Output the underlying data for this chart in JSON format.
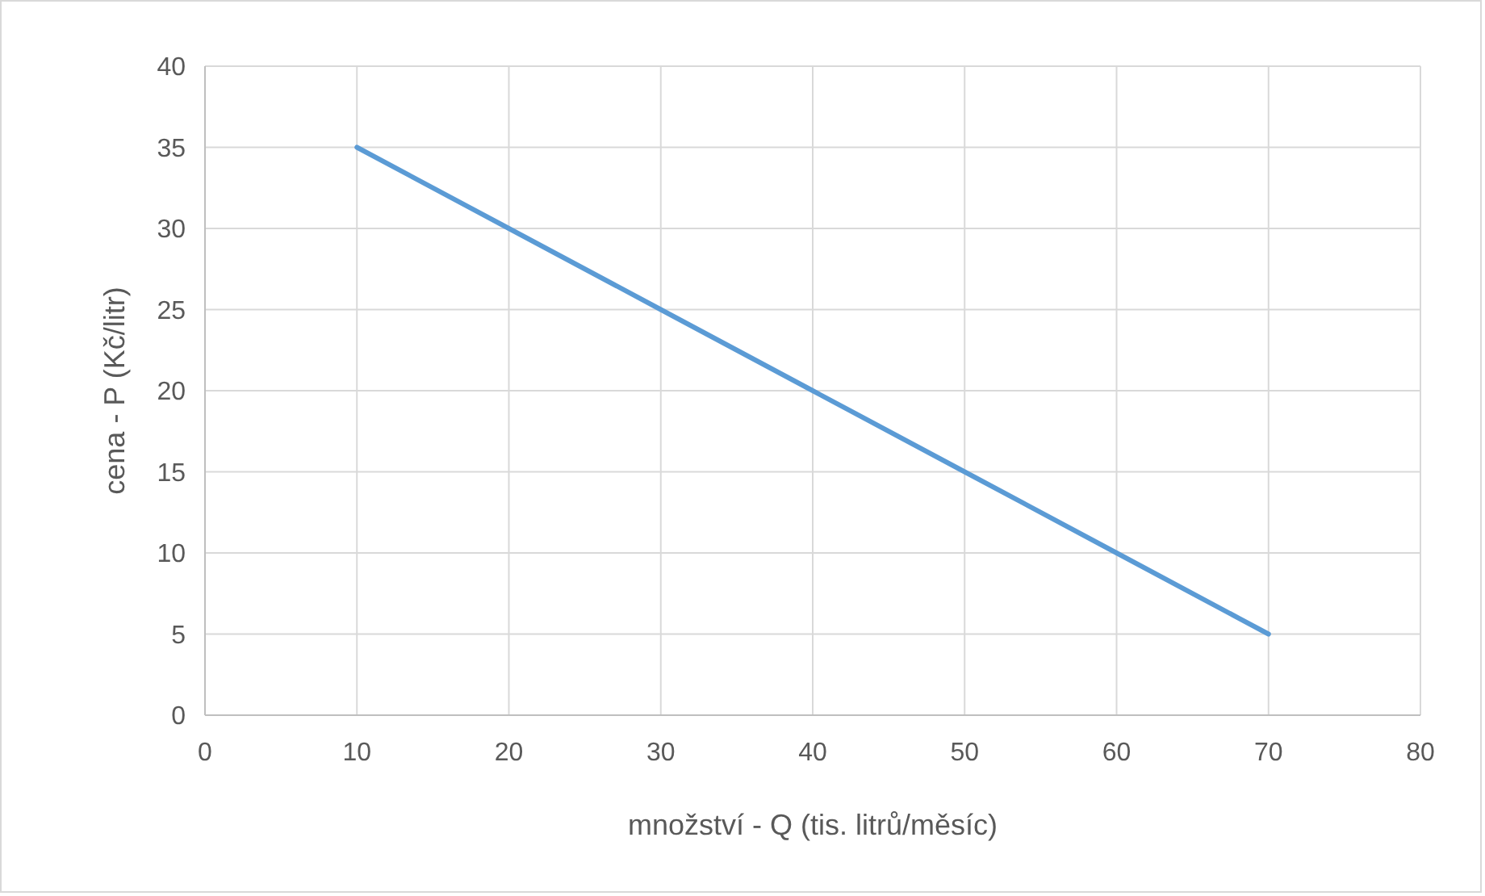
{
  "chart_data": {
    "type": "line",
    "xlabel": "množství - Q (tis. litrů/měsíc)",
    "ylabel": "cena - P (Kč/litr)",
    "x": [
      10,
      20,
      30,
      40,
      50,
      60,
      70
    ],
    "series": [
      {
        "color": "#5b9bd5",
        "values": [
          35,
          30,
          25,
          20,
          15,
          10,
          5
        ]
      }
    ],
    "xlim": [
      0,
      80
    ],
    "xticks": [
      0,
      10,
      20,
      30,
      40,
      50,
      60,
      70,
      80
    ],
    "ylim": [
      0,
      40
    ],
    "yticks": [
      0,
      5,
      10,
      15,
      20,
      25,
      30,
      35,
      40
    ],
    "grid": true,
    "marker": "none",
    "line_style": "solid"
  }
}
